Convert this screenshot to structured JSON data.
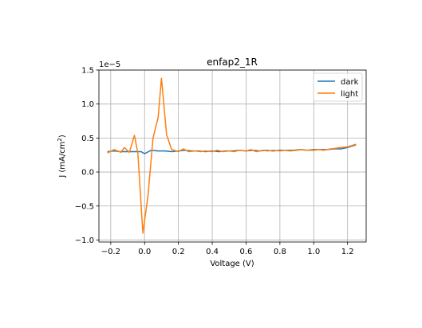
{
  "chart_data": {
    "type": "line",
    "title": "enfap2_1R",
    "xlabel": "Voltage (V)",
    "ylabel": "J (mA/cm²)",
    "ylabel_base": "J (mA/cm",
    "ylabel_sup": "2",
    "ylabel_tail": ")",
    "y_offset_text": "1e−5",
    "xlim": [
      -0.27,
      1.31
    ],
    "ylim": [
      -1.03,
      1.5
    ],
    "x_ticks": [
      -0.2,
      0.0,
      0.2,
      0.4,
      0.6,
      0.8,
      1.0,
      1.2
    ],
    "x_tick_labels": [
      "−0.2",
      "0.0",
      "0.2",
      "0.4",
      "0.6",
      "0.8",
      "1.0",
      "1.2"
    ],
    "y_ticks": [
      -1.0,
      -0.5,
      0.0,
      0.5,
      1.0,
      1.5
    ],
    "y_tick_labels": [
      "−1.0",
      "−0.5",
      "0.0",
      "0.5",
      "1.0",
      "1.5"
    ],
    "grid": true,
    "legend_position": "top-right",
    "series": [
      {
        "name": "dark",
        "color": "#1f77b4",
        "x": [
          -0.22,
          -0.18,
          -0.14,
          -0.1,
          -0.06,
          -0.02,
          0.0,
          0.04,
          0.08,
          0.12,
          0.16,
          0.2,
          0.24,
          0.28,
          0.32,
          0.36,
          0.4,
          0.44,
          0.48,
          0.52,
          0.56,
          0.6,
          0.64,
          0.68,
          0.72,
          0.76,
          0.8,
          0.84,
          0.88,
          0.92,
          0.96,
          1.0,
          1.04,
          1.08,
          1.12,
          1.16,
          1.2,
          1.25
        ],
        "y": [
          0.3,
          0.31,
          0.3,
          0.3,
          0.3,
          0.3,
          0.27,
          0.32,
          0.31,
          0.31,
          0.3,
          0.31,
          0.32,
          0.31,
          0.31,
          0.3,
          0.31,
          0.3,
          0.31,
          0.31,
          0.32,
          0.31,
          0.32,
          0.31,
          0.32,
          0.31,
          0.32,
          0.32,
          0.32,
          0.33,
          0.32,
          0.33,
          0.33,
          0.33,
          0.34,
          0.34,
          0.36,
          0.4
        ]
      },
      {
        "name": "light",
        "color": "#ff7f0e",
        "x": [
          -0.22,
          -0.18,
          -0.14,
          -0.12,
          -0.09,
          -0.06,
          -0.04,
          -0.01,
          0.02,
          0.05,
          0.08,
          0.1,
          0.13,
          0.16,
          0.2,
          0.23,
          0.26,
          0.3,
          0.33,
          0.36,
          0.4,
          0.43,
          0.46,
          0.5,
          0.53,
          0.56,
          0.6,
          0.63,
          0.66,
          0.7,
          0.73,
          0.76,
          0.8,
          0.83,
          0.86,
          0.9,
          0.93,
          0.96,
          1.0,
          1.03,
          1.06,
          1.1,
          1.13,
          1.16,
          1.2,
          1.25
        ],
        "y": [
          0.28,
          0.33,
          0.29,
          0.36,
          0.29,
          0.54,
          0.28,
          -0.9,
          -0.35,
          0.5,
          0.8,
          1.38,
          0.55,
          0.33,
          0.3,
          0.34,
          0.3,
          0.31,
          0.3,
          0.31,
          0.3,
          0.32,
          0.3,
          0.31,
          0.3,
          0.32,
          0.31,
          0.33,
          0.3,
          0.32,
          0.31,
          0.32,
          0.31,
          0.32,
          0.31,
          0.32,
          0.33,
          0.32,
          0.32,
          0.33,
          0.32,
          0.34,
          0.35,
          0.36,
          0.37,
          0.41
        ]
      }
    ]
  }
}
